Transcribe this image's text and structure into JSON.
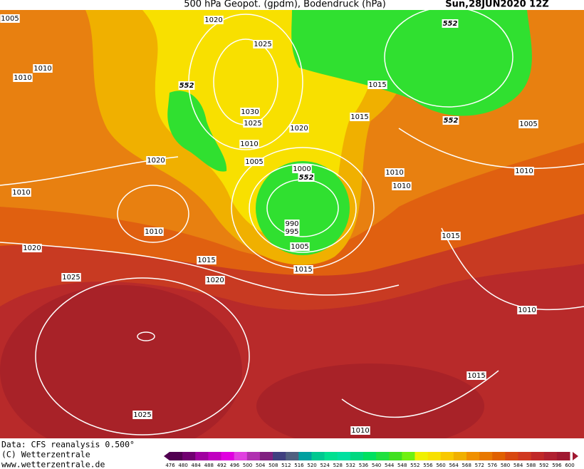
{
  "header": {
    "title": "500 hPa Geopot. (gpdm), Bodendruck (hPa)",
    "date": "Sun,28JUN2020 12Z"
  },
  "isobar_labels": [
    1005,
    1020,
    1025,
    1010,
    1010,
    1015,
    1030,
    1015,
    1025,
    1020,
    1005,
    1010,
    1020,
    1005,
    1000,
    1010,
    1010,
    1010,
    1010,
    1010,
    990,
    995,
    1015,
    1005,
    1020,
    1015,
    1015,
    1025,
    1020,
    1010,
    1015,
    1025,
    1010
  ],
  "geopotential_labels": [
    552,
    552,
    552,
    552
  ],
  "footer": {
    "source": "Data: CFS reanalysis 0.500°",
    "copyright": "(C) Wetterzentrale",
    "url": "www.wetterzentrale.de"
  },
  "legend": {
    "values": [
      476,
      480,
      484,
      488,
      492,
      496,
      500,
      504,
      508,
      512,
      516,
      520,
      524,
      528,
      532,
      536,
      540,
      544,
      548,
      552,
      556,
      560,
      564,
      568,
      572,
      576,
      580,
      584,
      588,
      592,
      596,
      600
    ],
    "colors": [
      "#500050",
      "#700070",
      "#a000a0",
      "#c000c0",
      "#e000e0",
      "#e040e0",
      "#b030b0",
      "#802080",
      "#404080",
      "#506080",
      "#00a0a0",
      "#00c890",
      "#00e090",
      "#00e0a0",
      "#00d880",
      "#00e060",
      "#20e040",
      "#40e020",
      "#70f010",
      "#f0f000",
      "#f8e000",
      "#f8c800",
      "#f0b000",
      "#f09000",
      "#e87800",
      "#e06000",
      "#d84810",
      "#d03820",
      "#c02828",
      "#b02030",
      "#a01830"
    ]
  }
}
